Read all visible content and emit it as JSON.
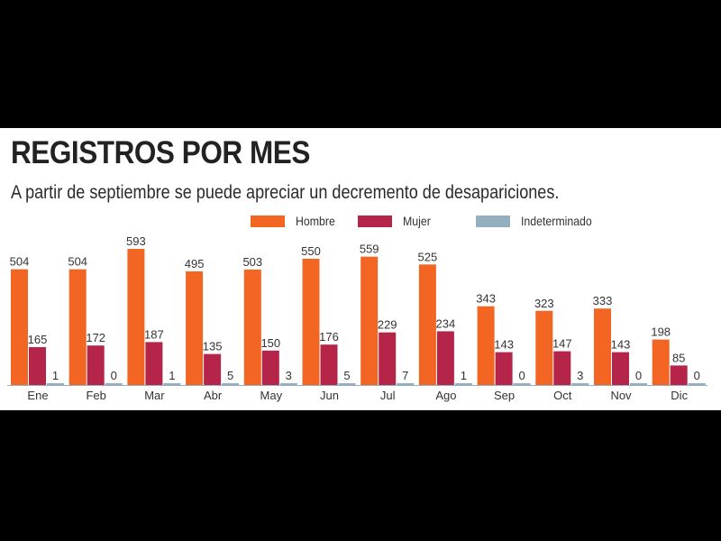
{
  "header": {
    "title": "REGISTROS POR MES",
    "subtitle": "A partir de septiembre se puede apreciar un decremento de desapariciones."
  },
  "legend": [
    {
      "label": "Hombre",
      "color": "#f26522"
    },
    {
      "label": "Mujer",
      "color": "#b5254a"
    },
    {
      "label": "Indeterminado",
      "color": "#93afc0"
    }
  ],
  "chart_data": {
    "type": "bar",
    "title": "REGISTROS POR MES",
    "subtitle": "A partir de septiembre se puede apreciar un decremento de desapariciones.",
    "xlabel": "",
    "ylabel": "",
    "ylim": [
      0,
      600
    ],
    "grid": false,
    "legend_position": "top-right",
    "categories": [
      "Ene",
      "Feb",
      "Mar",
      "Abr",
      "May",
      "Jun",
      "Jul",
      "Ago",
      "Sep",
      "Oct",
      "Nov",
      "Dic"
    ],
    "series": [
      {
        "name": "Hombre",
        "color": "#f26522",
        "values": [
          504,
          504,
          593,
          495,
          503,
          550,
          559,
          525,
          343,
          323,
          333,
          198
        ]
      },
      {
        "name": "Mujer",
        "color": "#b5254a",
        "values": [
          165,
          172,
          187,
          135,
          150,
          176,
          229,
          234,
          143,
          147,
          143,
          85
        ]
      },
      {
        "name": "Indeterminado",
        "color": "#93afc0",
        "values": [
          1,
          0,
          1,
          5,
          3,
          5,
          7,
          1,
          0,
          3,
          0,
          0
        ]
      }
    ]
  }
}
